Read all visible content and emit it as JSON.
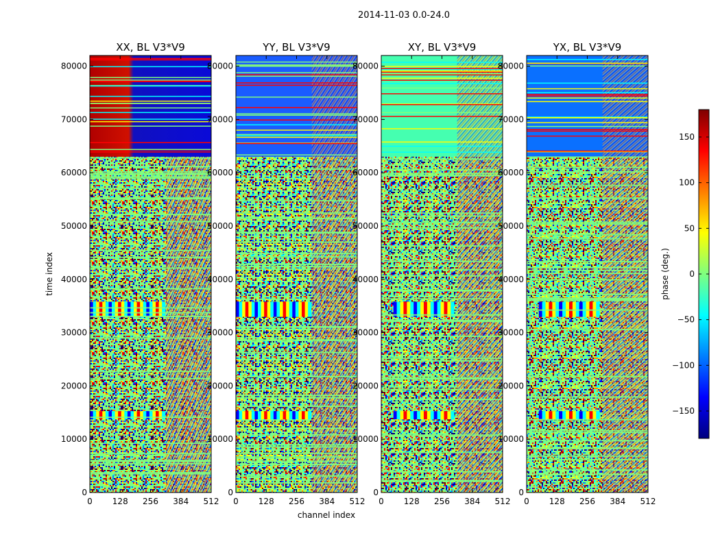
{
  "chart_data": {
    "type": "heatmap",
    "suptitle": "2014-11-03 0.0-24.0",
    "panels": [
      {
        "title": "XX, BL V3*V9",
        "polarization": "XX"
      },
      {
        "title": "YY, BL V3*V9",
        "polarization": "YY"
      },
      {
        "title": "XY, BL V3*V9",
        "polarization": "XY"
      },
      {
        "title": "YX, BL V3*V9",
        "polarization": "YX"
      }
    ],
    "xlabel": "channel index",
    "ylabel": "time index",
    "xlim": [
      0,
      512
    ],
    "ylim": [
      0,
      82000
    ],
    "xticks": [
      0,
      128,
      256,
      384,
      512
    ],
    "yticks": [
      0,
      10000,
      20000,
      30000,
      40000,
      50000,
      60000,
      70000,
      80000
    ],
    "colorbar": {
      "label": "phase (deg.)",
      "range": [
        -180,
        180
      ],
      "ticks": [
        -150,
        -100,
        -50,
        0,
        50,
        100,
        150
      ],
      "tick_labels": [
        "−150",
        "−100",
        "−50",
        "0",
        "50",
        "100",
        "150"
      ],
      "colormap": "jet",
      "colors": [
        "#00007f",
        "#0000ff",
        "#007fff",
        "#00ffff",
        "#7fff7f",
        "#ffff00",
        "#ff7f00",
        "#ff0000",
        "#7f0000"
      ]
    },
    "features": {
      "flat_band_time_range": [
        63000,
        82000
      ],
      "fringe_bands_time": [
        14500,
        34500
      ],
      "xx_flat_phase_low_channels": 170,
      "xx_flat_phase_high_channels": -150,
      "yy_flat_phase": -135,
      "xy_flat_phase": -15,
      "yx_flat_phase": -75
    }
  }
}
